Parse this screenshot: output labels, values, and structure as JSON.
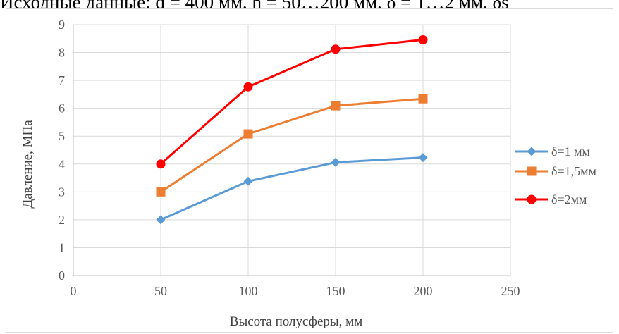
{
  "header_fragment": "Исходные данные: d = 400 мм, h = 50…200 мм, δ = 1…2 мм, δs",
  "chart_data": {
    "type": "line",
    "title": "",
    "xlabel": "Высота полусферы, мм",
    "ylabel": "Давление, МПа",
    "xlim": [
      0,
      250
    ],
    "ylim": [
      0,
      9
    ],
    "xticks": [
      0,
      50,
      100,
      150,
      200,
      250
    ],
    "yticks": [
      0,
      1,
      2,
      3,
      4,
      5,
      6,
      7,
      8,
      9
    ],
    "grid": true,
    "legend_position": "right",
    "x": [
      50,
      100,
      150,
      200
    ],
    "series": [
      {
        "name": "δ=1 мм",
        "values": [
          2.0,
          3.38,
          4.06,
          4.23
        ],
        "color": "#5b9bd5",
        "marker": "diamond"
      },
      {
        "name": "δ=1,5мм",
        "values": [
          3.0,
          5.08,
          6.09,
          6.34
        ],
        "color": "#ed7d31",
        "marker": "square"
      },
      {
        "name": "δ=2мм",
        "values": [
          4.0,
          6.77,
          8.12,
          8.46
        ],
        "color": "#ff0000",
        "marker": "circle"
      }
    ]
  }
}
